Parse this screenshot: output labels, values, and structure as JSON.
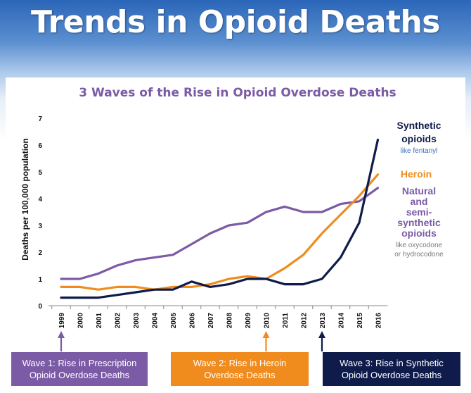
{
  "page_title": "Trends in Opioid Deaths",
  "colors": {
    "prescription": "#7b5aa6",
    "heroin": "#f08c1e",
    "synthetic": "#0f1b4a",
    "title": "#7b5aa6",
    "caption_gray": "#7a7a7a",
    "caption_blue": "#3a6ebf"
  },
  "chart_data": {
    "type": "line",
    "title": "3 Waves of the Rise in Opioid Overdose Deaths",
    "xlabel": "",
    "ylabel": "Deaths per 100,000 population",
    "ylim": [
      0,
      7
    ],
    "yticks": [
      "0",
      "1",
      "2",
      "3",
      "4",
      "5",
      "6",
      "7"
    ],
    "x": [
      "1999",
      "2000",
      "2001",
      "2002",
      "2003",
      "2004",
      "2005",
      "2006",
      "2007",
      "2008",
      "2009",
      "2010",
      "2011",
      "2012",
      "2013",
      "2014",
      "2015",
      "2016"
    ],
    "grid": false,
    "series": [
      {
        "key": "prescription",
        "name": "Natural",
        "name_lines": [
          "Natural",
          "and",
          "semi-",
          "synthetic",
          "opioids"
        ],
        "note_lines": [
          "like oxycodone",
          "or hydrocodone"
        ],
        "color": "#7b5aa6",
        "values": [
          1.0,
          1.0,
          1.2,
          1.5,
          1.7,
          1.8,
          1.9,
          2.3,
          2.7,
          3.0,
          3.1,
          3.5,
          3.7,
          3.5,
          3.5,
          3.8,
          3.9,
          4.4
        ]
      },
      {
        "key": "heroin",
        "name": "Heroin",
        "name_lines": [
          "Heroin"
        ],
        "note_lines": [],
        "color": "#f08c1e",
        "values": [
          0.7,
          0.7,
          0.6,
          0.7,
          0.7,
          0.6,
          0.7,
          0.7,
          0.8,
          1.0,
          1.1,
          1.0,
          1.4,
          1.9,
          2.7,
          3.4,
          4.1,
          4.9
        ]
      },
      {
        "key": "synthetic",
        "name": "Synthetic",
        "name_lines": [
          "Synthetic",
          "opioids"
        ],
        "note_lines": [
          "like fentanyl"
        ],
        "color": "#0f1b4a",
        "values": [
          0.3,
          0.3,
          0.3,
          0.4,
          0.5,
          0.6,
          0.6,
          0.9,
          0.7,
          0.8,
          1.0,
          1.0,
          0.8,
          0.8,
          1.0,
          1.8,
          3.1,
          6.2
        ]
      }
    ]
  },
  "callouts": [
    {
      "key": "wave1",
      "lines": [
        "Wave 1: Rise in Prescription",
        "Opioid Overdose Deaths"
      ],
      "color": "#7b5aa6",
      "year": "1999"
    },
    {
      "key": "wave2",
      "lines": [
        "Wave 2: Rise in Heroin",
        "Overdose Deaths"
      ],
      "color": "#f08c1e",
      "year": "2010"
    },
    {
      "key": "wave3",
      "lines": [
        "Wave 3: Rise in Synthetic",
        "Opioid Overdose Deaths"
      ],
      "color": "#0f1b4a",
      "year": "2013"
    }
  ]
}
